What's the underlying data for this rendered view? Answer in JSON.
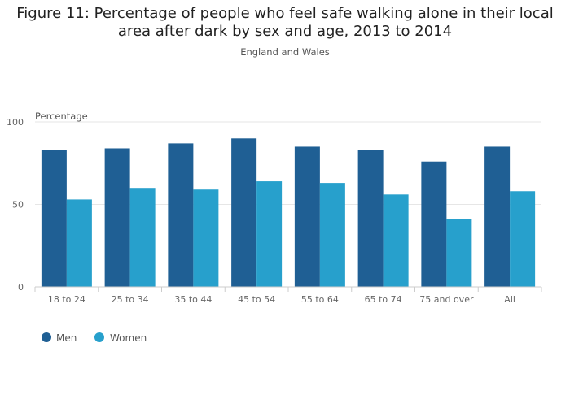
{
  "chart_data": {
    "type": "bar",
    "title_line1": "Figure 11: Percentage of people who feel safe walking alone in their local",
    "title_line2": "area after dark by sex and age, 2013 to 2014",
    "subtitle": "England and Wales",
    "ylabel": "Percentage",
    "xlabel": "",
    "ylim": [
      0,
      100
    ],
    "yticks": [
      0,
      50,
      100
    ],
    "categories": [
      "18 to 24",
      "25 to 34",
      "35 to 44",
      "45 to 54",
      "55 to 64",
      "65 to 74",
      "75 and over",
      "All"
    ],
    "series": [
      {
        "name": "Men",
        "color": "#1f5f94",
        "values": [
          83,
          84,
          87,
          90,
          85,
          83,
          76,
          85
        ]
      },
      {
        "name": "Women",
        "color": "#27a0cc",
        "values": [
          53,
          60,
          59,
          64,
          63,
          56,
          41,
          58
        ]
      }
    ],
    "legend_position": "bottom-left",
    "grid": true
  }
}
